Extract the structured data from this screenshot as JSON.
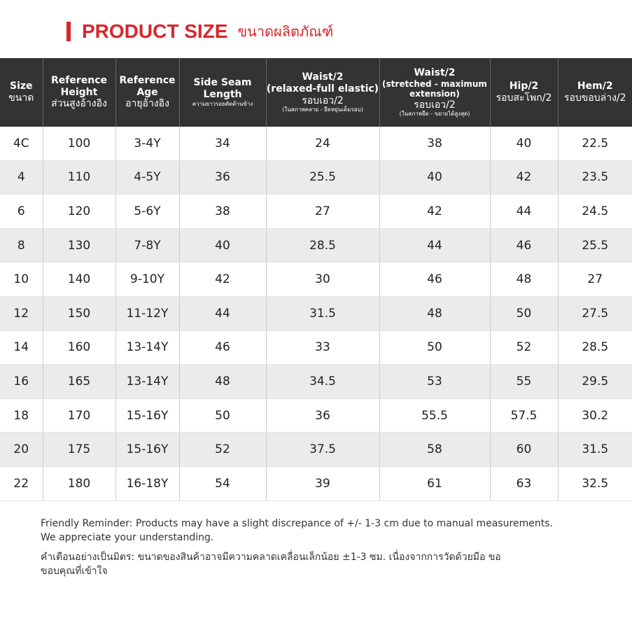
{
  "header": {
    "title": "PRODUCT SIZE",
    "subtitle": "ขนาดผลิตภัณฑ์"
  },
  "table": {
    "columns": [
      [
        "Size",
        "ขนาด"
      ],
      [
        "Reference",
        "Height",
        "ส่วนสูงอ้างอิง"
      ],
      [
        "Reference",
        "Age",
        "อายุอ้างอิง"
      ],
      [
        "Side Seam",
        "Length",
        "ความยาวรอยตัดด้านข้าง"
      ],
      [
        "Waist/2",
        "(relaxed-full elastic)",
        "รอบเอว/2",
        "(ในสภาพคลาย - ยืดหยุ่นเต็มรอบ)"
      ],
      [
        "Waist/2",
        "(stretched - maximum",
        "extension)",
        "รอบเอว/2",
        "(ในสภาพยืด - ขยายได้สูงสุด)"
      ],
      [
        "Hip/2",
        "รอบสะโพก/2"
      ],
      [
        "Hem/2",
        "รอบขอบล่าง/2"
      ]
    ],
    "rows": [
      [
        "4C",
        "100",
        "3-4Y",
        "34",
        "24",
        "38",
        "40",
        "22.5"
      ],
      [
        "4",
        "110",
        "4-5Y",
        "36",
        "25.5",
        "40",
        "42",
        "23.5"
      ],
      [
        "6",
        "120",
        "5-6Y",
        "38",
        "27",
        "42",
        "44",
        "24.5"
      ],
      [
        "8",
        "130",
        "7-8Y",
        "40",
        "28.5",
        "44",
        "46",
        "25.5"
      ],
      [
        "10",
        "140",
        "9-10Y",
        "42",
        "30",
        "46",
        "48",
        "27"
      ],
      [
        "12",
        "150",
        "11-12Y",
        "44",
        "31.5",
        "48",
        "50",
        "27.5"
      ],
      [
        "14",
        "160",
        "13-14Y",
        "46",
        "33",
        "50",
        "52",
        "28.5"
      ],
      [
        "16",
        "165",
        "13-14Y",
        "48",
        "34.5",
        "53",
        "55",
        "29.5"
      ],
      [
        "18",
        "170",
        "15-16Y",
        "50",
        "36",
        "55.5",
        "57.5",
        "30.2"
      ],
      [
        "20",
        "175",
        "15-16Y",
        "52",
        "37.5",
        "58",
        "60",
        "31.5"
      ],
      [
        "22",
        "180",
        "16-18Y",
        "54",
        "39",
        "61",
        "63",
        "32.5"
      ]
    ]
  },
  "notes": [
    [
      "Friendly Reminder: Products may have a slight discrepance of +/- 1-3 cm due to manual measurements.",
      "We appreciate your understanding."
    ],
    [
      "คำเตือนอย่างเป็นมิตร: ขนาดของสินค้าอาจมีความคลาดเคลื่อนเล็กน้อย ±1-3 ซม. เนื่องจากการวัดด้วยมือ ขอ",
      "ขอบคุณที่เข้าใจ"
    ]
  ]
}
